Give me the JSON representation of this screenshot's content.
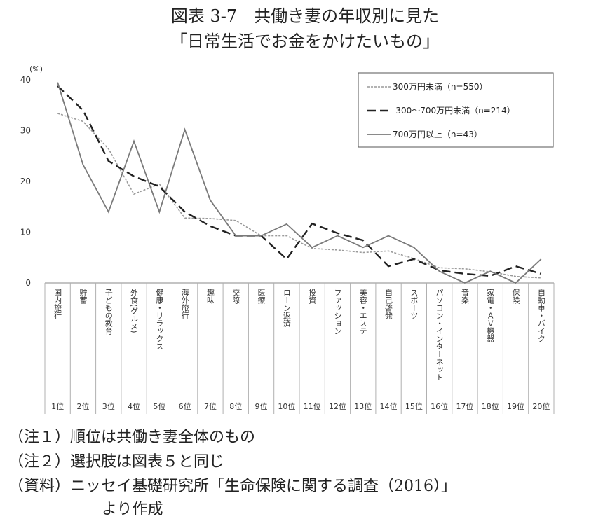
{
  "title": {
    "line1": "図表 3-7　共働き妻の年収別に見た",
    "line2": "「日常生活でお金をかけたいもの」"
  },
  "chart_data": {
    "type": "line",
    "yunit": "(%)",
    "ylim": [
      0,
      40
    ],
    "yticks": [
      0,
      10,
      20,
      30,
      40
    ],
    "grid": false,
    "legend_position": "top-right",
    "categories": [
      "国内旅行",
      "貯蓄",
      "子どもの教育",
      "外食(グルメ)",
      "健康・リラックス",
      "海外旅行",
      "趣味",
      "交際",
      "医療",
      "ローン返済",
      "投資",
      "ファッション",
      "美容・エステ",
      "自己啓発",
      "スポーツ",
      "パソコン・インターネット",
      "音楽",
      "家電・ＡＶ機器",
      "保険",
      "自動車・バイク"
    ],
    "ranks": [
      "1位",
      "2位",
      "3位",
      "4位",
      "5位",
      "6位",
      "7位",
      "8位",
      "9位",
      "10位",
      "11位",
      "12位",
      "13位",
      "14位",
      "15位",
      "16位",
      "17位",
      "18位",
      "19位",
      "20位"
    ],
    "series": [
      {
        "name": "300万円未満（n=550）",
        "style": "dotted",
        "color": "#9a9a9a",
        "values": [
          33.4,
          31.8,
          26.4,
          17.5,
          19.5,
          12.8,
          12.7,
          12.3,
          9.3,
          9.3,
          6.8,
          6.5,
          6.0,
          6.3,
          4.8,
          3.0,
          2.8,
          2.2,
          1.3,
          1.0
        ]
      },
      {
        "name": "-300～700万円未満（n=214）",
        "style": "dashed",
        "color": "#222222",
        "values": [
          38.8,
          34.0,
          24.0,
          21.0,
          19.0,
          14.0,
          11.2,
          9.3,
          9.3,
          4.7,
          11.7,
          9.8,
          8.4,
          3.3,
          4.7,
          2.5,
          1.8,
          1.4,
          3.3,
          1.8
        ]
      },
      {
        "name": "700万円以上（n=43）",
        "style": "solid",
        "color": "#7a7a7a",
        "values": [
          39.5,
          23.3,
          14.0,
          27.9,
          14.0,
          30.2,
          16.3,
          9.3,
          9.3,
          11.6,
          7.0,
          9.3,
          7.0,
          9.3,
          7.0,
          2.3,
          0.0,
          2.3,
          0.0,
          4.7
        ]
      }
    ]
  },
  "notes": {
    "n1": "（注１）順位は共働き妻全体のもの",
    "n2": "（注２）選択肢は図表５と同じ",
    "n3": "（資料）ニッセイ基礎研究所「生命保険に関する調査（2016）」",
    "n4": "より作成"
  }
}
